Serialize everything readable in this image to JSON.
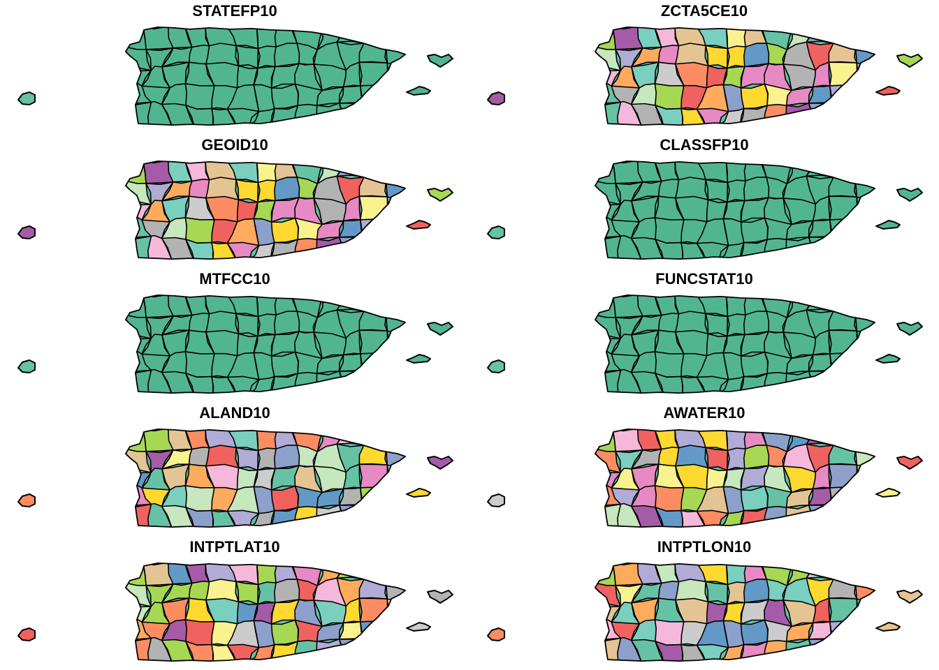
{
  "panels": [
    {
      "title": "STATEFP10",
      "fill": "uniform",
      "island_color": "#66C2A5"
    },
    {
      "title": "ZCTA5CE10",
      "fill": "varied",
      "island_color": "#A65BA8",
      "seed": 3
    },
    {
      "title": "GEOID10",
      "fill": "varied",
      "island_color": "#A65BA8",
      "seed": 3
    },
    {
      "title": "CLASSFP10",
      "fill": "uniform",
      "island_color": "#66C2A5"
    },
    {
      "title": "MTFCC10",
      "fill": "uniform",
      "island_color": "#66C2A5"
    },
    {
      "title": "FUNCSTAT10",
      "fill": "uniform",
      "island_color": "#66C2A5"
    },
    {
      "title": "ALAND10",
      "fill": "varied",
      "island_color": "#FC8D62",
      "seed": 11
    },
    {
      "title": "AWATER10",
      "fill": "varied",
      "island_color": "#CCCCCC",
      "seed": 17
    },
    {
      "title": "INTPTLAT10",
      "fill": "varied",
      "island_color": "#F0625F",
      "seed": 23
    },
    {
      "title": "INTPTLON10",
      "fill": "varied",
      "island_color": "#FC8D62",
      "seed": 29
    }
  ],
  "colors": {
    "uniform": "#52B592",
    "palette": [
      "#66C2A5",
      "#FC8D62",
      "#8DA0CB",
      "#E78AC3",
      "#A6D854",
      "#FFD92F",
      "#E5C494",
      "#B3B3B3",
      "#F0625F",
      "#A65BA8",
      "#6399C7",
      "#FAF28F",
      "#B0ACD6",
      "#C7E7BE",
      "#F5B8DA",
      "#7ACFBF",
      "#FFAB5E",
      "#CCCCCC"
    ],
    "border": "#000000",
    "background": "#FFFFFF"
  }
}
